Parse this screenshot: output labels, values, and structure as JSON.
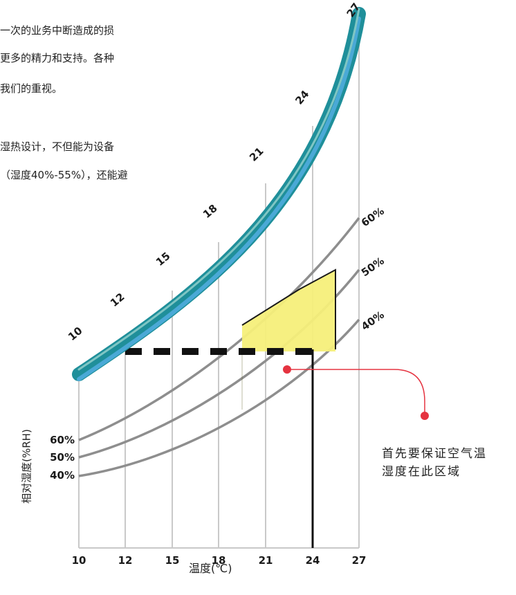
{
  "intro_lines": [
    "一次的业务中断造成的损",
    "更多的精力和支持。各种",
    "我们的重视。",
    "湿热设计，不但能为设备",
    "（湿度40%-55%），还能避"
  ],
  "diagram": {
    "saturation_ticks": [
      "10",
      "12",
      "15",
      "18",
      "21",
      "24",
      "27"
    ],
    "x_ticks": [
      "10",
      "12",
      "15",
      "18",
      "21",
      "24",
      "27"
    ],
    "left_rh_labels": [
      "60%",
      "50%",
      "40%"
    ],
    "right_rh_labels": [
      "60%",
      "50%",
      "40%"
    ],
    "y_axis_label": "相对湿度(%RH)",
    "x_axis_label": "温度(℃)",
    "annotation_line1": "首先要保证空气温",
    "annotation_line2": "湿度在此区域",
    "colors": {
      "saturation_band": "#1f8f9a",
      "saturation_inner": "#4aa9d6",
      "curve_gray": "#8e8e8e",
      "zone_fill": "#f5ef7a",
      "callout_red": "#e53340",
      "dash_black": "#111111"
    }
  }
}
